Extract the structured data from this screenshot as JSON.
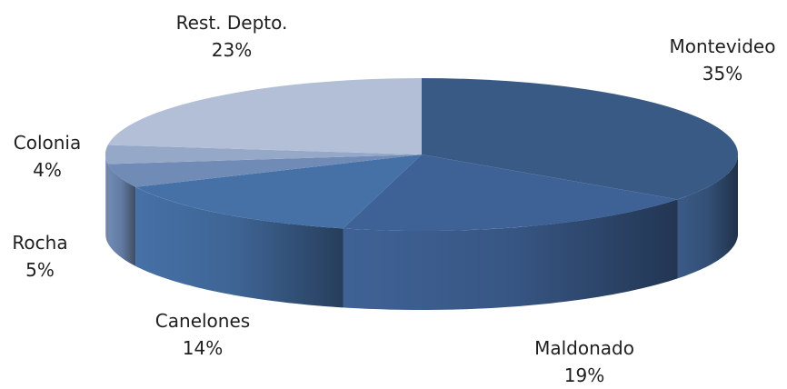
{
  "chart_data": {
    "type": "pie",
    "title": "",
    "style": "3d",
    "slices": [
      {
        "label": "Montevideo",
        "value": 35,
        "value_label": "35%",
        "color": "#3a5a86"
      },
      {
        "label": "Maldonado",
        "value": 19,
        "value_label": "19%",
        "color": "#3f6296"
      },
      {
        "label": "Canelones",
        "value": 14,
        "value_label": "14%",
        "color": "#4671a7"
      },
      {
        "label": "Rocha",
        "value": 5,
        "value_label": "5%",
        "color": "#6f8bb6"
      },
      {
        "label": "Colonia",
        "value": 4,
        "value_label": "4%",
        "color": "#95a8c8"
      },
      {
        "label": "Rest. Depto.",
        "value": 23,
        "value_label": "23%",
        "color": "#b3bfd6"
      }
    ]
  }
}
